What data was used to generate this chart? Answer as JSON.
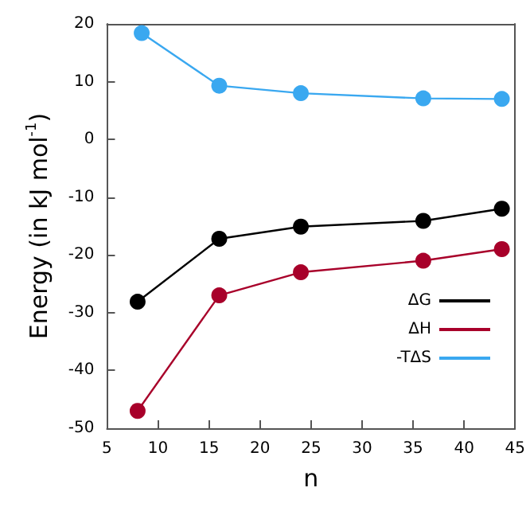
{
  "chart_data": {
    "type": "line",
    "xlabel": "n",
    "ylabel": "Energy (in kJ mol$^{-1}$)",
    "xlim": [
      5,
      45
    ],
    "xticks": [
      5,
      10,
      15,
      20,
      25,
      30,
      35,
      40,
      45
    ],
    "ylim": [
      -50,
      20
    ],
    "yticks": [
      -50,
      -40,
      -30,
      -20,
      -10,
      0,
      10,
      20
    ],
    "grid": false,
    "legend": "bottom right",
    "marker": "circle",
    "line_style": "solid",
    "series": [
      {
        "name": "ΔG",
        "color": "#000000",
        "x": [
          8,
          16,
          24,
          36,
          43.7
        ],
        "values": [
          -28.1,
          -17.2,
          -15.1,
          -14.1,
          -12
        ]
      },
      {
        "name": "ΔH",
        "color": "#a8002a",
        "x": [
          8,
          16,
          24,
          36,
          43.7
        ],
        "values": [
          -47,
          -27,
          -23,
          -21,
          -19
        ]
      },
      {
        "name": "-TΔS",
        "color": "#3aa8f0",
        "x": [
          8.4,
          16,
          24,
          36,
          43.7
        ],
        "values": [
          18.4,
          9.3,
          8,
          7.1,
          7
        ]
      }
    ]
  }
}
